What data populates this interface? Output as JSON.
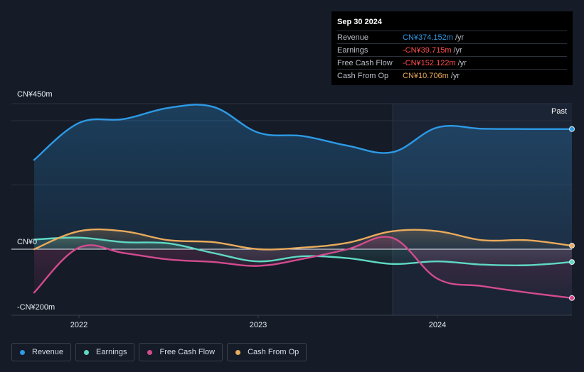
{
  "tooltip": {
    "date": "Sep 30 2024",
    "rows": [
      {
        "label": "Revenue",
        "value": "CN¥374.152m",
        "unit": "/yr",
        "color": "#2d9ae6"
      },
      {
        "label": "Earnings",
        "value": "-CN¥39.715m",
        "unit": "/yr",
        "color": "#ff4d4d"
      },
      {
        "label": "Free Cash Flow",
        "value": "-CN¥152.122m",
        "unit": "/yr",
        "color": "#ff4d4d"
      },
      {
        "label": "Cash From Op",
        "value": "CN¥10.706m",
        "unit": "/yr",
        "color": "#e9ab5c"
      }
    ]
  },
  "legend": [
    {
      "label": "Revenue",
      "color": "#2d9ae6"
    },
    {
      "label": "Earnings",
      "color": "#5fd9c4"
    },
    {
      "label": "Free Cash Flow",
      "color": "#d24b8e"
    },
    {
      "label": "Cash From Op",
      "color": "#e9ab5c"
    }
  ],
  "chart_data": {
    "type": "line",
    "ylim": [
      -200,
      450
    ],
    "y_tick_labels": [
      {
        "value": 450,
        "label": "CN¥450m"
      },
      {
        "value": 0,
        "label": "CN¥0"
      },
      {
        "value": -200,
        "label": "-CN¥200m"
      }
    ],
    "x_ticks": [
      {
        "value": 2022.0,
        "label": "2022"
      },
      {
        "value": 2023.0,
        "label": "2023"
      },
      {
        "value": 2024.0,
        "label": "2024"
      }
    ],
    "xlim": [
      2021.75,
      2024.75
    ],
    "past_start": 2023.75,
    "past_label": "Past",
    "series": [
      {
        "name": "Revenue",
        "color": "#2d9ae6",
        "x": [
          2021.75,
          2022.0,
          2022.25,
          2022.5,
          2022.75,
          2023.0,
          2023.25,
          2023.5,
          2023.75,
          2024.0,
          2024.25,
          2024.5,
          2024.75
        ],
        "y": [
          278,
          393,
          405,
          440,
          443,
          363,
          352,
          322,
          302,
          379,
          375,
          374,
          374
        ]
      },
      {
        "name": "Earnings",
        "color": "#5fd9c4",
        "x": [
          2021.75,
          2022.0,
          2022.25,
          2022.5,
          2022.75,
          2023.0,
          2023.25,
          2023.5,
          2023.75,
          2024.0,
          2024.25,
          2024.5,
          2024.75
        ],
        "y": [
          30,
          36,
          22,
          18,
          -12,
          -38,
          -22,
          -28,
          -46,
          -38,
          -48,
          -50,
          -40
        ]
      },
      {
        "name": "Free Cash Flow",
        "color": "#d24b8e",
        "x": [
          2021.75,
          2022.0,
          2022.25,
          2022.5,
          2022.75,
          2023.0,
          2023.25,
          2023.5,
          2023.75,
          2024.0,
          2024.25,
          2024.5,
          2024.75
        ],
        "y": [
          -135,
          5,
          -12,
          -32,
          -40,
          -52,
          -30,
          0,
          35,
          -92,
          -115,
          -135,
          -152
        ]
      },
      {
        "name": "Cash From Op",
        "color": "#e9ab5c",
        "x": [
          2021.75,
          2022.0,
          2022.25,
          2022.5,
          2022.75,
          2023.0,
          2023.25,
          2023.5,
          2023.75,
          2024.0,
          2024.25,
          2024.5,
          2024.75
        ],
        "y": [
          0,
          56,
          56,
          28,
          22,
          0,
          5,
          20,
          56,
          56,
          28,
          28,
          11
        ]
      }
    ]
  }
}
